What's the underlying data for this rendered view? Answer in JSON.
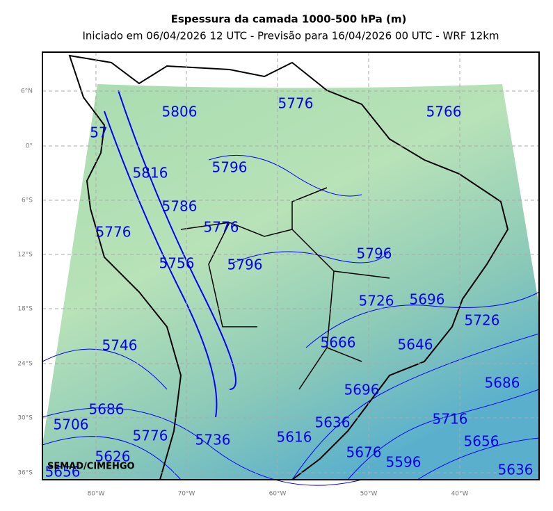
{
  "header": {
    "title": "Espessura da camada 1000-500 hPa (m)",
    "subtitle": "Iniciado em 06/04/2026 12 UTC - Previsão para 16/04/2026 00 UTC - WRF 12km"
  },
  "map": {
    "lat_labels": [
      "6°N",
      "0°",
      "6°S",
      "12°S",
      "18°S",
      "24°S",
      "30°S",
      "36°S"
    ],
    "lon_labels": [
      "80°W",
      "70°W",
      "60°W",
      "50°W",
      "40°W"
    ],
    "contour_labels": [
      "5776",
      "5806",
      "5766",
      "57",
      "5816",
      "5796",
      "5786",
      "5776",
      "5776",
      "5796",
      "5796",
      "5756",
      "5726",
      "5696",
      "5726",
      "5746",
      "5666",
      "5646",
      "5686",
      "5696",
      "5686",
      "5706",
      "5636",
      "5716",
      "5776",
      "5736",
      "5616",
      "5656",
      "5676",
      "5626",
      "5596",
      "5636",
      "5656"
    ],
    "credit": "SEMAD/CIMEHGO"
  }
}
